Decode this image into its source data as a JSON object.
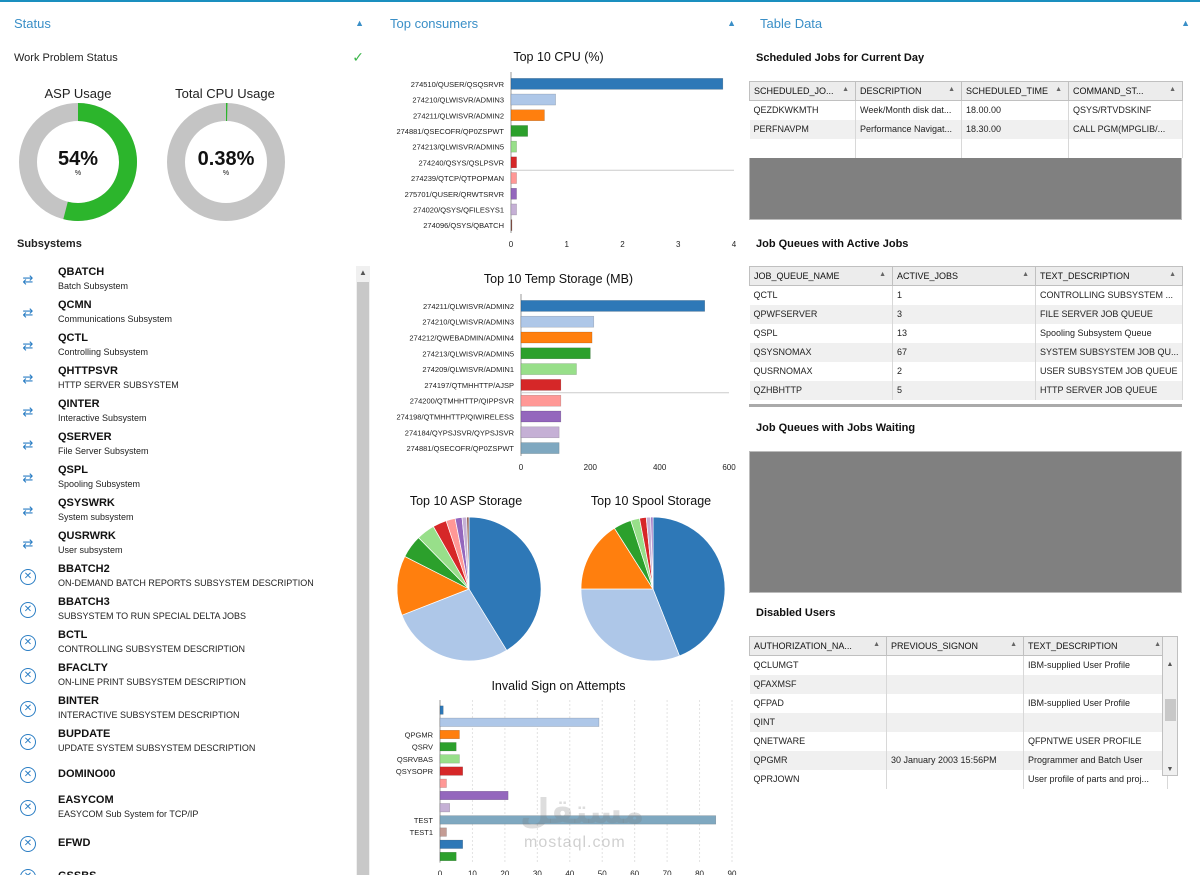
{
  "panels": {
    "status": "Status",
    "consumers": "Top consumers",
    "table": "Table Data"
  },
  "colors": {
    "accent": "#3a8fc7",
    "gauge_fill": "#2cb52c",
    "gauge_track": "#c4c4c4"
  },
  "status": {
    "work_problem": "Work Problem Status",
    "asp_title": "ASP Usage",
    "asp_value": "54%",
    "asp_unit": "%",
    "asp_fraction": 0.54,
    "cpu_title": "Total CPU Usage",
    "cpu_value": "0.38%",
    "cpu_unit": "%",
    "cpu_fraction": 0.0038,
    "subsystems_title": "Subsystems"
  },
  "subsystems": [
    {
      "name": "QBATCH",
      "desc": "Batch Subsystem",
      "icon": "active-arrows-icon"
    },
    {
      "name": "QCMN",
      "desc": "Communications Subsystem",
      "icon": "active-arrows-icon"
    },
    {
      "name": "QCTL",
      "desc": "Controlling Subsystem",
      "icon": "active-arrows-icon"
    },
    {
      "name": "QHTTPSVR",
      "desc": "HTTP SERVER SUBSYSTEM",
      "icon": "active-arrows-icon"
    },
    {
      "name": "QINTER",
      "desc": "Interactive Subsystem",
      "icon": "active-arrows-icon"
    },
    {
      "name": "QSERVER",
      "desc": "File Server Subsystem",
      "icon": "active-arrows-icon"
    },
    {
      "name": "QSPL",
      "desc": "Spooling Subsystem",
      "icon": "active-arrows-icon"
    },
    {
      "name": "QSYSWRK",
      "desc": "System subsystem",
      "icon": "active-arrows-icon"
    },
    {
      "name": "QUSRWRK",
      "desc": "User subsystem",
      "icon": "active-arrows-icon"
    },
    {
      "name": "BBATCH2",
      "desc": "ON-DEMAND BATCH REPORTS SUBSYSTEM DESCRIPTION",
      "icon": "inactive-x-icon"
    },
    {
      "name": "BBATCH3",
      "desc": "SUBSYSTEM TO RUN SPECIAL DELTA JOBS",
      "icon": "inactive-x-icon"
    },
    {
      "name": "BCTL",
      "desc": "CONTROLLING SUBSYSTEM DESCRIPTION",
      "icon": "inactive-x-icon"
    },
    {
      "name": "BFACLTY",
      "desc": "ON-LINE PRINT SUBSYSTEM DESCRIPTION",
      "icon": "inactive-x-icon"
    },
    {
      "name": "BINTER",
      "desc": "INTERACTIVE SUBSYSTEM DESCRIPTION",
      "icon": "inactive-x-icon"
    },
    {
      "name": "BUPDATE",
      "desc": "UPDATE SYSTEM SUBSYSTEM DESCRIPTION",
      "icon": "inactive-x-icon"
    },
    {
      "name": "DOMINO00",
      "desc": "",
      "icon": "inactive-x-icon"
    },
    {
      "name": "EASYCOM",
      "desc": "EASYCOM Sub System for TCP/IP",
      "icon": "inactive-x-icon"
    },
    {
      "name": "EFWD",
      "desc": "",
      "icon": "inactive-x-icon"
    },
    {
      "name": "GSSBS",
      "desc": "",
      "icon": "inactive-x-icon"
    }
  ],
  "chart_data": [
    {
      "type": "bar",
      "title": "Top 10 CPU (%)",
      "orientation": "horizontal",
      "categories": [
        "274510/QUSER/QSQSRVR",
        "274210/QLWISVR/ADMIN3",
        "274211/QLWISVR/ADMIN2",
        "274881/QSECOFR/QP0ZSPWT",
        "274213/QLWISVR/ADMIN5",
        "274240/QSYS/QSLPSVR",
        "274239/QTCP/QTPOPMAN",
        "275701/QUSER/QRWTSRVR",
        "274020/QSYS/QFILESYS1",
        "274096/QSYS/QBATCH"
      ],
      "values": [
        3.8,
        0.8,
        0.6,
        0.3,
        0.1,
        0.1,
        0.1,
        0.1,
        0.1,
        0.01
      ],
      "colors": [
        "#2e78b7",
        "#aec7e8",
        "#ff7f0e",
        "#2ca02c",
        "#98df8a",
        "#d62728",
        "#ff9896",
        "#9467bd",
        "#c5b0d5",
        "#8c564b"
      ],
      "xticks": [
        0,
        1,
        2,
        3,
        4
      ],
      "xlim": [
        0,
        4
      ]
    },
    {
      "type": "bar",
      "title": "Top 10 Temp Storage (MB)",
      "orientation": "horizontal",
      "categories": [
        "274211/QLWISVR/ADMIN2",
        "274210/QLWISVR/ADMIN3",
        "274212/QWEBADMIN/ADMIN4",
        "274213/QLWISVR/ADMIN5",
        "274209/QLWISVR/ADMIN1",
        "274197/QTMHHTTP/AJSP",
        "274200/QTMHHTTP/QIPPSVR",
        "274198/QTMHHTTP/QIWIRELESS",
        "274184/QYPSJSVR/QYPSJSVR",
        "274881/QSECOFR/QP0ZSPWT"
      ],
      "values": [
        530,
        210,
        205,
        200,
        160,
        115,
        115,
        115,
        110,
        110
      ],
      "colors": [
        "#2e78b7",
        "#aec7e8",
        "#ff7f0e",
        "#2ca02c",
        "#98df8a",
        "#d62728",
        "#ff9896",
        "#9467bd",
        "#c5b0d5",
        "#7fa8c0"
      ],
      "xticks": [
        0,
        200,
        400,
        600
      ],
      "xlim": [
        0,
        600
      ]
    },
    {
      "type": "pie",
      "title": "Top 10 ASP Storage",
      "values": [
        40,
        27,
        13,
        5,
        4,
        3,
        2,
        1.5,
        1,
        0.5
      ],
      "colors": [
        "#2e78b7",
        "#aec7e8",
        "#ff7f0e",
        "#2ca02c",
        "#98df8a",
        "#d62728",
        "#ff9896",
        "#9467bd",
        "#c5b0d5",
        "#8c564b"
      ]
    },
    {
      "type": "pie",
      "title": "Top 10 Spool Storage",
      "values": [
        44,
        31,
        16,
        4,
        2,
        1.5,
        1,
        0.5
      ],
      "colors": [
        "#2e78b7",
        "#aec7e8",
        "#ff7f0e",
        "#2ca02c",
        "#98df8a",
        "#d62728",
        "#c5b0d5",
        "#9467bd"
      ]
    },
    {
      "type": "bar",
      "title": "Invalid Sign on Attempts",
      "orientation": "horizontal",
      "categories": [
        "",
        "",
        "QPGMR",
        "QSRV",
        "QSRVBAS",
        "QSYSOPR",
        "",
        "",
        "",
        "TEST",
        "TEST1",
        "",
        ""
      ],
      "values": [
        1,
        49,
        6,
        5,
        6,
        7,
        2,
        21,
        3,
        85,
        2,
        7,
        5
      ],
      "colors": [
        "#2e78b7",
        "#aec7e8",
        "#ff7f0e",
        "#2ca02c",
        "#98df8a",
        "#d62728",
        "#ff9896",
        "#9467bd",
        "#c5b0d5",
        "#7fa8c0",
        "#c49c94",
        "#2e78b7",
        "#2ca02c"
      ],
      "xticks": [
        0,
        10,
        20,
        30,
        40,
        50,
        60,
        70,
        80,
        90
      ],
      "xlim": [
        0,
        90
      ]
    }
  ],
  "tables": {
    "scheduled_title": "Scheduled Jobs for Current Day",
    "scheduled_headers": [
      "SCHEDULED_JO...",
      "DESCRIPTION",
      "SCHEDULED_TIME",
      "COMMAND_ST..."
    ],
    "scheduled_rows": [
      [
        "QEZDKWKMTH",
        "Week/Month disk dat...",
        "18.00.00",
        "QSYS/RTVDSKINF"
      ],
      [
        "PERFNAVPM",
        "Performance Navigat...",
        "18.30.00",
        "CALL PGM(MPGLIB/..."
      ]
    ],
    "active_title": "Job Queues with Active Jobs",
    "active_headers": [
      "JOB_QUEUE_NAME",
      "ACTIVE_JOBS",
      "TEXT_DESCRIPTION"
    ],
    "active_rows": [
      [
        "QCTL",
        "1",
        "CONTROLLING SUBSYSTEM ..."
      ],
      [
        "QPWFSERVER",
        "3",
        "FILE SERVER JOB QUEUE"
      ],
      [
        "QSPL",
        "13",
        "Spooling Subsystem Queue"
      ],
      [
        "QSYSNOMAX",
        "67",
        "SYSTEM SUBSYSTEM JOB QU..."
      ],
      [
        "QUSRNOMAX",
        "2",
        "USER SUBSYSTEM JOB QUEUE"
      ],
      [
        "QZHBHTTP",
        "5",
        "HTTP SERVER JOB QUEUE"
      ]
    ],
    "waiting_title": "Job Queues with Jobs Waiting",
    "disabled_title": "Disabled Users",
    "disabled_headers": [
      "AUTHORIZATION_NA...",
      "PREVIOUS_SIGNON",
      "TEXT_DESCRIPTION"
    ],
    "disabled_rows": [
      [
        "QCLUMGT",
        "",
        "IBM-supplied User Profile"
      ],
      [
        "QFAXMSF",
        "",
        ""
      ],
      [
        "QFPAD",
        "",
        "IBM-supplied User Profile"
      ],
      [
        "QINT",
        "",
        ""
      ],
      [
        "QNETWARE",
        "",
        "QFPNTWE USER PROFILE"
      ],
      [
        "QPGMR",
        "30 January 2003 15:56PM",
        "Programmer and Batch User"
      ],
      [
        "QPRJOWN",
        "",
        "User profile of parts and proj..."
      ]
    ]
  },
  "watermark": {
    "arabic": "مستقل",
    "latin": "mostaql.com"
  }
}
